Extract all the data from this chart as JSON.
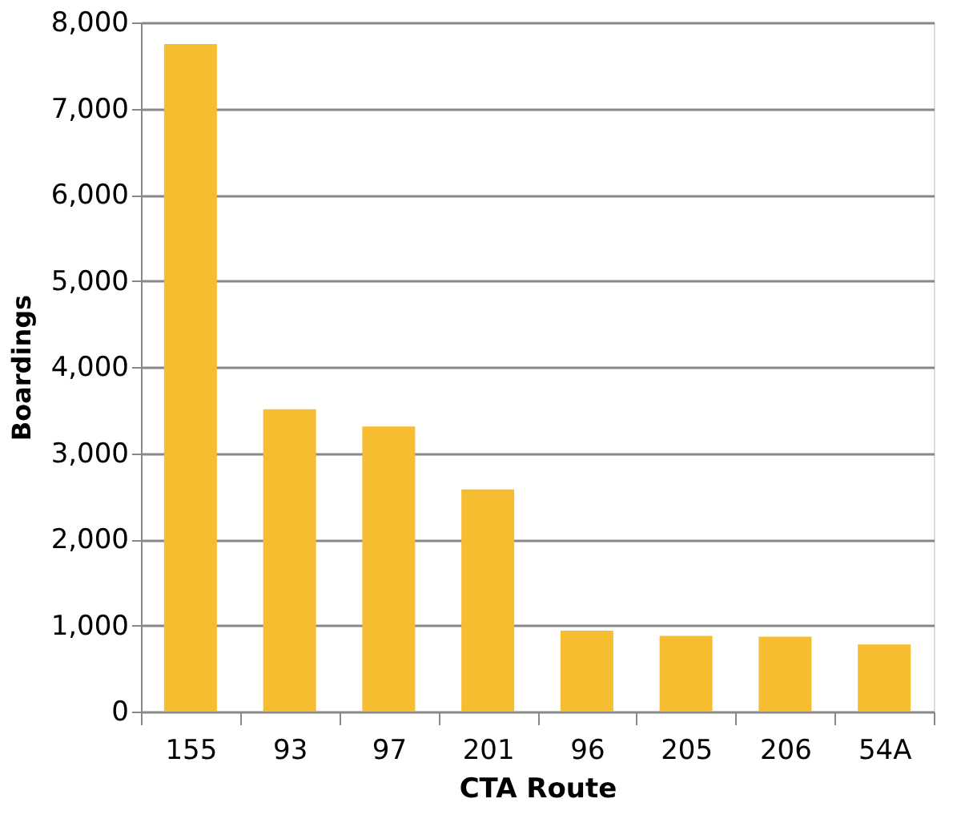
{
  "chart_data": {
    "type": "bar",
    "xlabel": "CTA Route",
    "ylabel": "Boardings",
    "categories": [
      "155",
      "93",
      "97",
      "201",
      "96",
      "205",
      "206",
      "54A"
    ],
    "values": [
      7750,
      3510,
      3310,
      2580,
      940,
      880,
      870,
      780
    ],
    "color": "#f6bd31",
    "ylim": [
      0,
      8000
    ],
    "yticks": [
      0,
      {
        "value": 1000,
        "label": "1,000"
      },
      {
        "value": 2000,
        "label": "2,000"
      },
      {
        "value": 3000,
        "label": "3,000"
      },
      {
        "value": 4000,
        "label": "4,000"
      },
      {
        "value": 5000,
        "label": "5,000"
      },
      {
        "value": 6000,
        "label": "6,000"
      },
      {
        "value": 7000,
        "label": "7,000"
      },
      {
        "value": 8000,
        "label": "8,000"
      }
    ],
    "grid": "y"
  }
}
